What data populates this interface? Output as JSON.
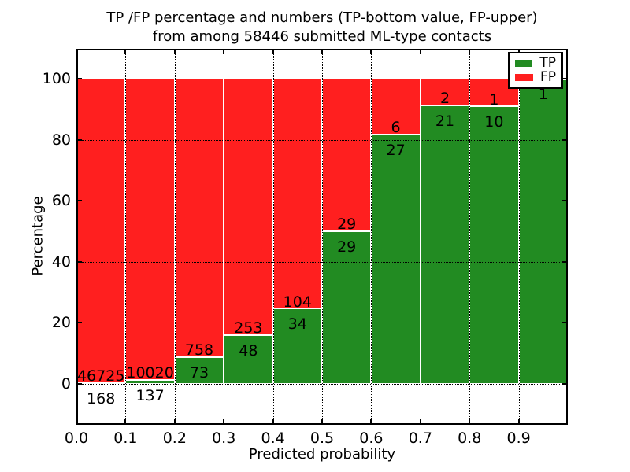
{
  "title": {
    "line1": "TP /FP percentage and numbers (TP-bottom value, FP-upper)",
    "line2": "from among 58446 submitted ML-type contacts"
  },
  "axes": {
    "xlabel": "Predicted probability",
    "ylabel": "Percentage",
    "xtick_labels": [
      "0.0",
      "0.1",
      "0.2",
      "0.3",
      "0.4",
      "0.5",
      "0.6",
      "0.7",
      "0.8",
      "0.9"
    ],
    "ytick_values": [
      0,
      20,
      40,
      60,
      80,
      100
    ],
    "ytick_labels": [
      "0",
      "20",
      "40",
      "60",
      "80",
      "100"
    ]
  },
  "legend": {
    "items": [
      {
        "label": "TP",
        "color": "#228B22"
      },
      {
        "label": "FP",
        "color": "#FF1F1F"
      }
    ]
  },
  "chart_data": {
    "type": "bar",
    "subtype": "stacked-100-percent",
    "title": "TP /FP percentage and numbers (TP-bottom value, FP-upper) from among 58446 submitted ML-type contacts",
    "xlabel": "Predicted probability",
    "ylabel": "Percentage",
    "total_contacts": 58446,
    "xlim": [
      0.0,
      1.0
    ],
    "ylim_approx": [
      -13,
      110
    ],
    "grid": "dotted",
    "legend_position": "upper right",
    "bin_edges": [
      0.0,
      0.1,
      0.2,
      0.3,
      0.4,
      0.5,
      0.6,
      0.7,
      0.8,
      0.9,
      1.0
    ],
    "series": [
      {
        "name": "TP",
        "color": "#228B22",
        "counts": [
          168,
          137,
          73,
          48,
          34,
          29,
          27,
          21,
          10,
          1
        ],
        "pct": [
          0.36,
          1.35,
          8.79,
          15.95,
          24.64,
          50.0,
          81.82,
          91.3,
          90.91,
          100.0
        ]
      },
      {
        "name": "FP",
        "color": "#FF1F1F",
        "counts": [
          46725,
          10020,
          758,
          253,
          104,
          29,
          6,
          2,
          1,
          0
        ],
        "pct": [
          99.64,
          98.65,
          91.21,
          84.05,
          75.36,
          50.0,
          18.18,
          8.7,
          9.09,
          0.0
        ]
      }
    ],
    "bar_value_labels": {
      "tp": [
        "168",
        "137",
        "73",
        "48",
        "34",
        "29",
        "27",
        "21",
        "10",
        "1"
      ],
      "fp": [
        "46725",
        "10020",
        "758",
        "253",
        "104",
        "29",
        "6",
        "2",
        "1",
        ""
      ]
    }
  }
}
